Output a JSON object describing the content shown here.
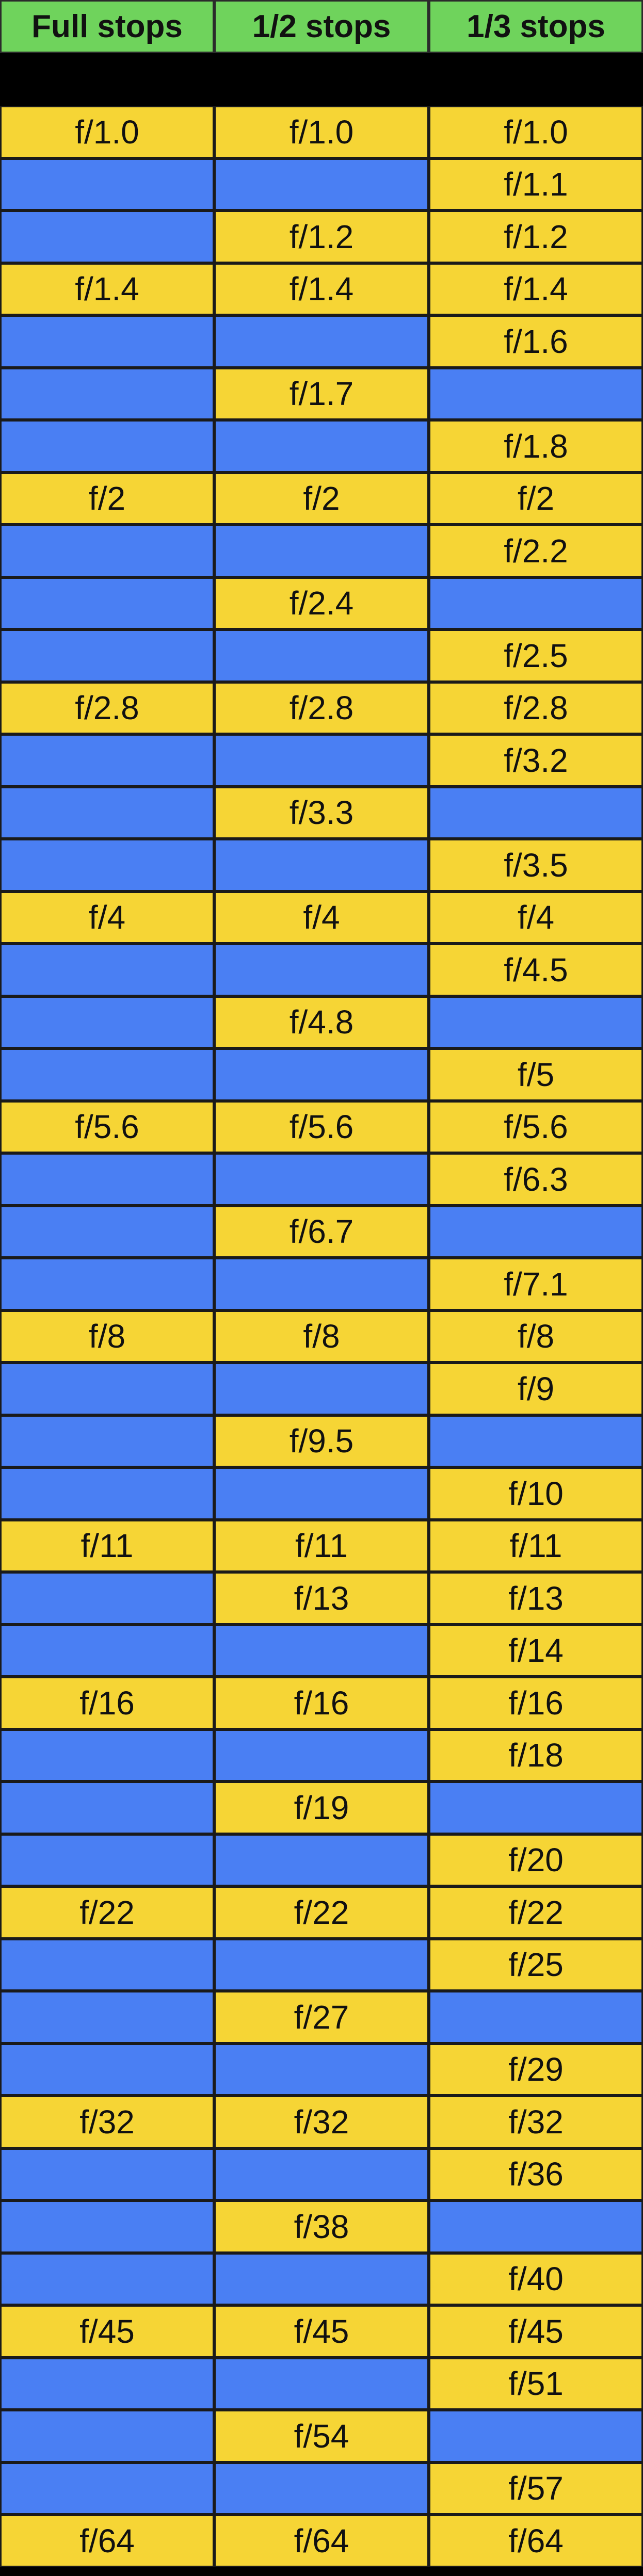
{
  "table": {
    "headers": [
      "Full stops",
      "1/2 stops",
      "1/3 stops"
    ],
    "rows": [
      [
        "f/1.0",
        "f/1.0",
        "f/1.0"
      ],
      [
        "",
        "",
        "f/1.1"
      ],
      [
        "",
        "f/1.2",
        "f/1.2"
      ],
      [
        "f/1.4",
        "f/1.4",
        "f/1.4"
      ],
      [
        "",
        "",
        "f/1.6"
      ],
      [
        "",
        "f/1.7",
        ""
      ],
      [
        "",
        "",
        "f/1.8"
      ],
      [
        "f/2",
        "f/2",
        "f/2"
      ],
      [
        "",
        "",
        "f/2.2"
      ],
      [
        "",
        "f/2.4",
        ""
      ],
      [
        "",
        "",
        "f/2.5"
      ],
      [
        "f/2.8",
        "f/2.8",
        "f/2.8"
      ],
      [
        "",
        "",
        "f/3.2"
      ],
      [
        "",
        "f/3.3",
        ""
      ],
      [
        "",
        "",
        "f/3.5"
      ],
      [
        "f/4",
        "f/4",
        "f/4"
      ],
      [
        "",
        "",
        "f/4.5"
      ],
      [
        "",
        "f/4.8",
        ""
      ],
      [
        "",
        "",
        "f/5"
      ],
      [
        "f/5.6",
        "f/5.6",
        "f/5.6"
      ],
      [
        "",
        "",
        "f/6.3"
      ],
      [
        "",
        "f/6.7",
        ""
      ],
      [
        "",
        "",
        "f/7.1"
      ],
      [
        "f/8",
        "f/8",
        "f/8"
      ],
      [
        "",
        "",
        "f/9"
      ],
      [
        "",
        "f/9.5",
        ""
      ],
      [
        "",
        "",
        "f/10"
      ],
      [
        "f/11",
        "f/11",
        "f/11"
      ],
      [
        "",
        "f/13",
        "f/13"
      ],
      [
        "",
        "",
        "f/14"
      ],
      [
        "f/16",
        "f/16",
        "f/16"
      ],
      [
        "",
        "",
        "f/18"
      ],
      [
        "",
        "f/19",
        ""
      ],
      [
        "",
        "",
        "f/20"
      ],
      [
        "f/22",
        "f/22",
        "f/22"
      ],
      [
        "",
        "",
        "f/25"
      ],
      [
        "",
        "f/27",
        ""
      ],
      [
        "",
        "",
        "f/29"
      ],
      [
        "f/32",
        "f/32",
        "f/32"
      ],
      [
        "",
        "",
        "f/36"
      ],
      [
        "",
        "f/38",
        ""
      ],
      [
        "",
        "",
        "f/40"
      ],
      [
        "f/45",
        "f/45",
        "f/45"
      ],
      [
        "",
        "",
        "f/51"
      ],
      [
        "",
        "f/54",
        ""
      ],
      [
        "",
        "",
        "f/57"
      ],
      [
        "f/64",
        "f/64",
        "f/64"
      ]
    ]
  },
  "colors": {
    "header": "#6fd35c",
    "filled": "#f6d535",
    "empty": "#4a7ff3",
    "spacer": "#000000"
  }
}
